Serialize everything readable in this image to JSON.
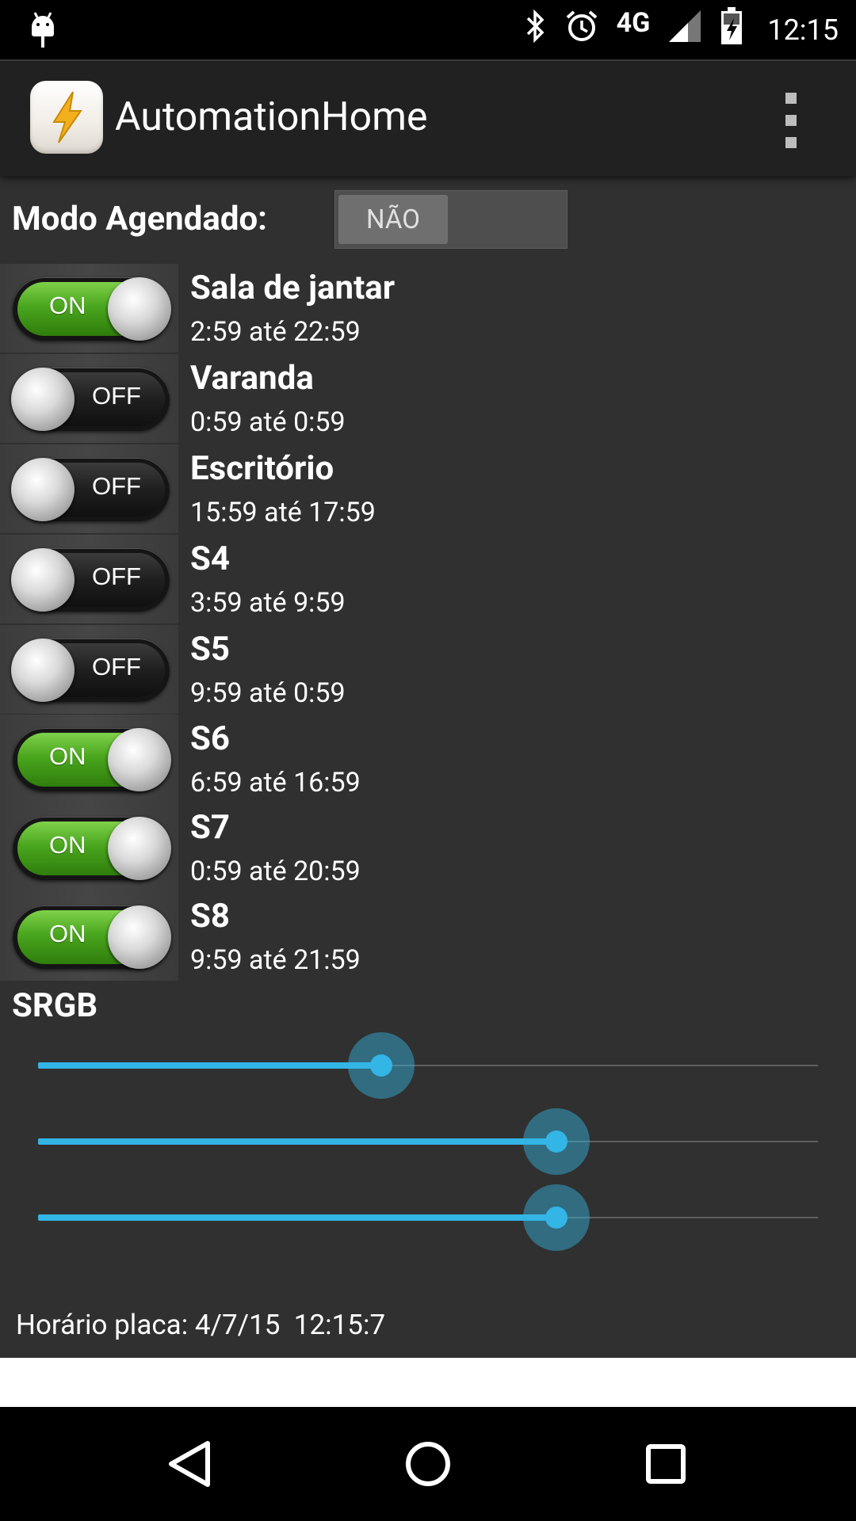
{
  "status_bar": {
    "network": "4G",
    "time": "12:15",
    "icons": [
      "android-debug-icon",
      "bluetooth-icon",
      "alarm-icon",
      "signal-icon",
      "battery-charging-icon"
    ]
  },
  "app_bar": {
    "title": "AutomationHome",
    "icon": "lightning-icon",
    "menu_icon": "overflow-menu-icon"
  },
  "scheduled_mode": {
    "label": "Modo Agendado:",
    "toggle_text": "NÃO",
    "enabled": false
  },
  "switches": [
    {
      "name": "Sala de jantar",
      "range": "2:59 até 22:59",
      "state": "ON"
    },
    {
      "name": "Varanda",
      "range": "0:59 até 0:59",
      "state": "OFF"
    },
    {
      "name": "Escritório",
      "range": "15:59 até 17:59",
      "state": "OFF"
    },
    {
      "name": "S4",
      "range": "3:59 até 9:59",
      "state": "OFF"
    },
    {
      "name": "S5",
      "range": "9:59 até 0:59",
      "state": "OFF"
    },
    {
      "name": "S6",
      "range": "6:59 até 16:59",
      "state": "ON"
    },
    {
      "name": "S7",
      "range": "0:59 até 20:59",
      "state": "ON"
    },
    {
      "name": "S8",
      "range": "9:59 até 21:59",
      "state": "ON"
    }
  ],
  "srgb": {
    "label": "SRGB",
    "sliders": [
      {
        "level": 0.44
      },
      {
        "level": 0.665
      },
      {
        "level": 0.665
      }
    ],
    "accent": "#33b5e5"
  },
  "board_time": "Horário placa: 4/7/15  12:15:7",
  "nav_bar": {
    "icons": [
      "back-icon",
      "home-icon",
      "recents-icon"
    ]
  }
}
